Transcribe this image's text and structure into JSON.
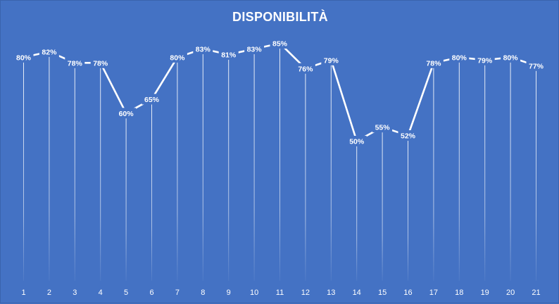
{
  "chart_data": {
    "type": "line",
    "title": "DISPONIBILITÀ",
    "xlabel": "",
    "ylabel": "",
    "categories": [
      "1",
      "2",
      "3",
      "4",
      "5",
      "6",
      "7",
      "8",
      "9",
      "10",
      "11",
      "12",
      "13",
      "14",
      "15",
      "16",
      "17",
      "18",
      "19",
      "20",
      "21"
    ],
    "series": [
      {
        "values": [
          80,
          82,
          78,
          78,
          60,
          65,
          80,
          83,
          81,
          83,
          85,
          76,
          79,
          50,
          55,
          52,
          78,
          80,
          79,
          80,
          77
        ],
        "labels": [
          "80%",
          "82%",
          "78%",
          "78%",
          "60%",
          "65%",
          "80%",
          "83%",
          "81%",
          "83%",
          "85%",
          "76%",
          "79%",
          "50%",
          "55%",
          "52%",
          "78%",
          "80%",
          "79%",
          "80%",
          "77%"
        ]
      }
    ],
    "ylim": [
      0,
      100
    ],
    "y_axis_visible": false,
    "drop_lines": true,
    "legend": "none",
    "grid": false,
    "colors": {
      "background": "#4472c4",
      "line": "#ffffff",
      "text": "#ffffff"
    }
  }
}
